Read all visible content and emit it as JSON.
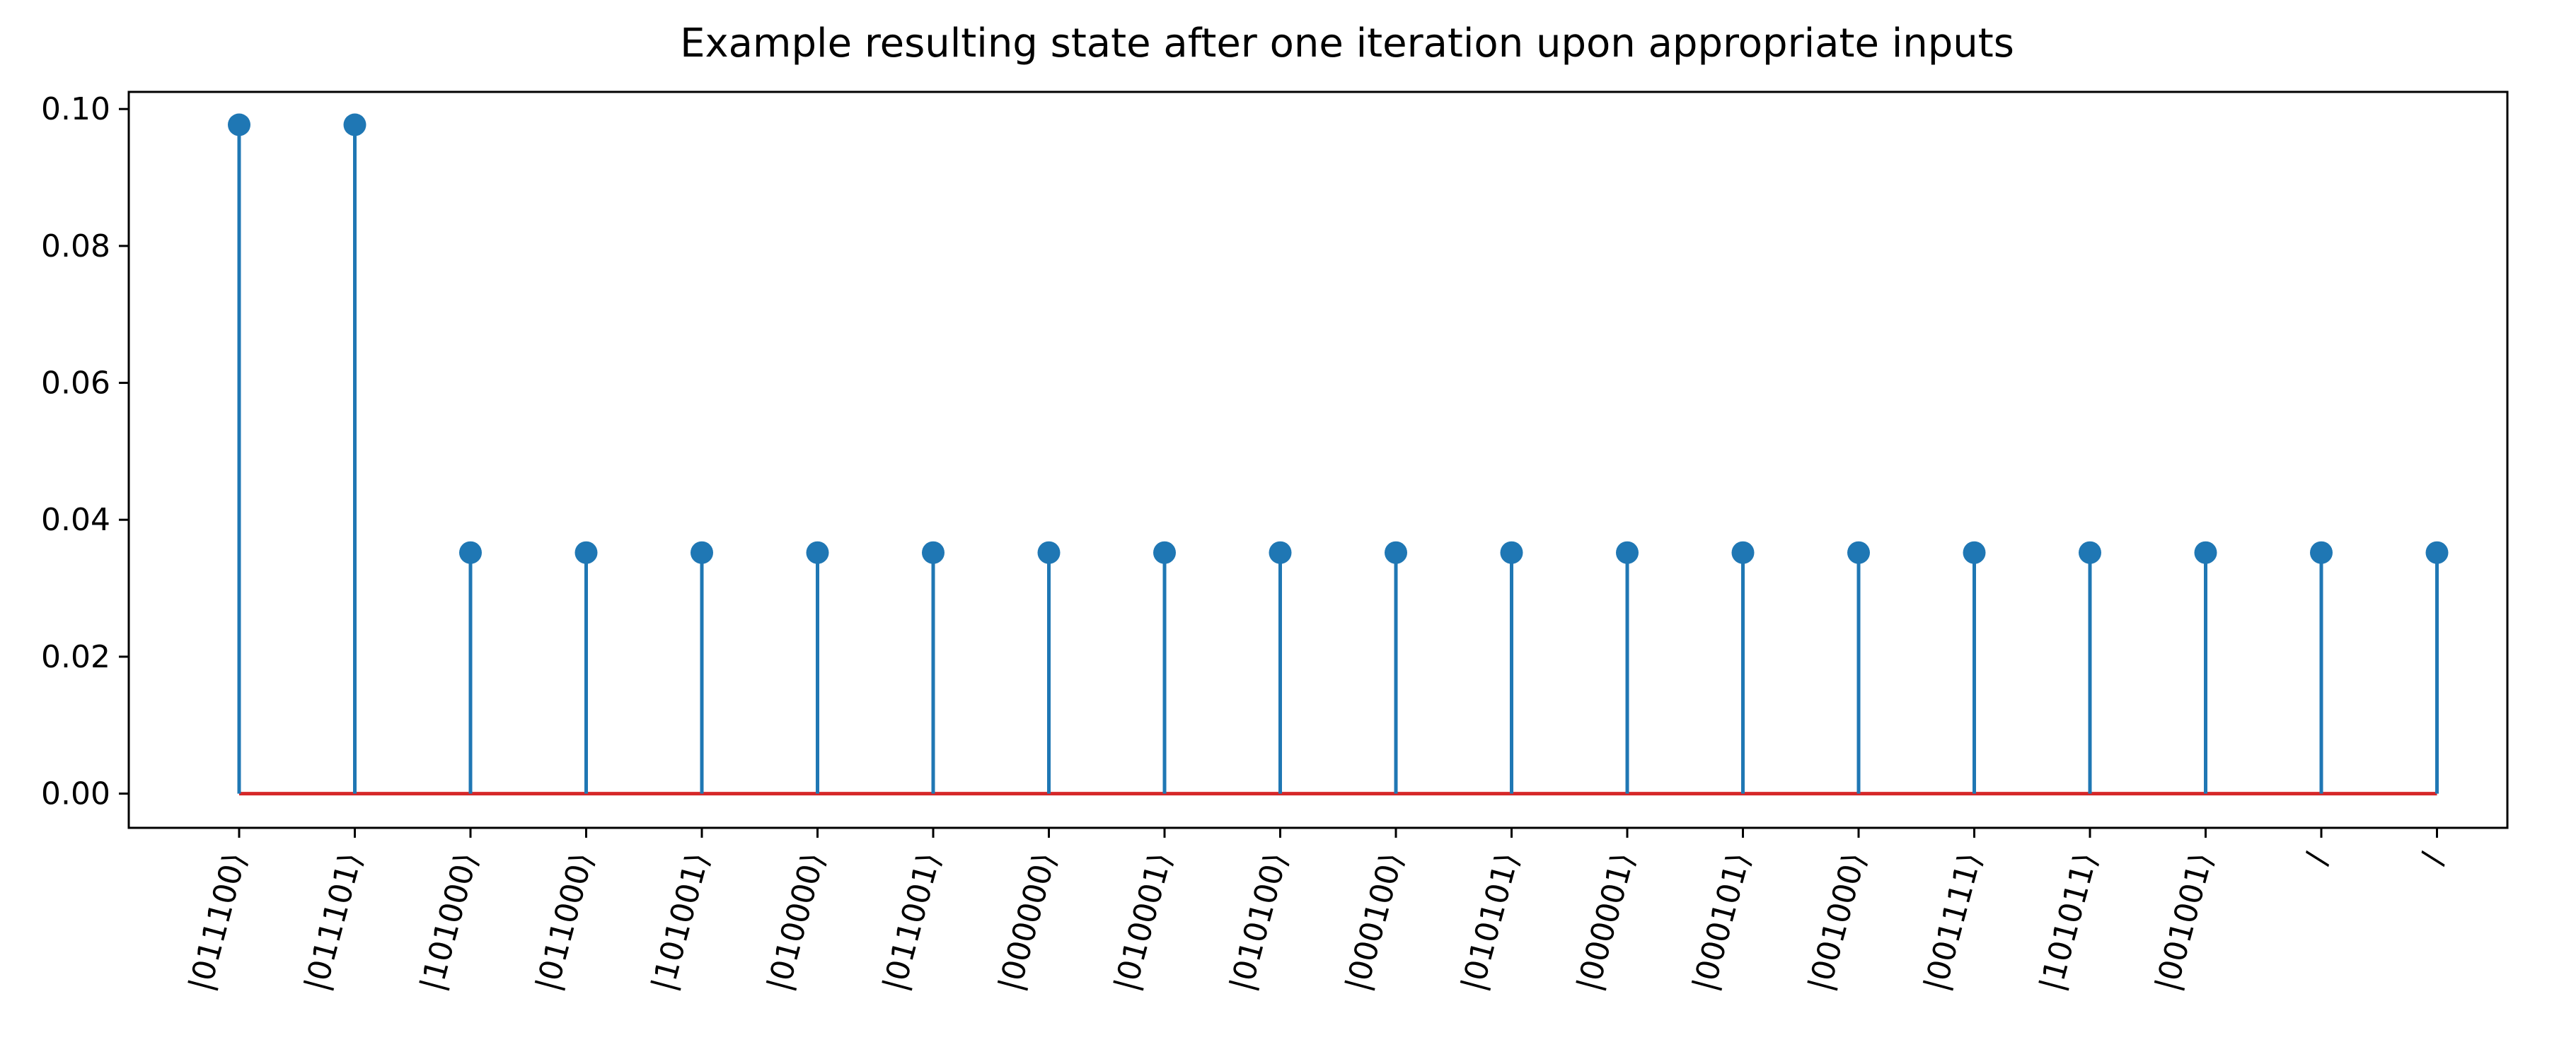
{
  "chart_data": {
    "type": "stem",
    "title": "Example resulting state after one iteration upon appropriate inputs",
    "xlabel": "",
    "ylabel": "",
    "ylim": [
      -0.005,
      0.1025
    ],
    "yticks": [
      "0.00",
      "0.02",
      "0.04",
      "0.06",
      "0.08",
      "0.10"
    ],
    "categories": [
      "|011100⟩",
      "|011101⟩",
      "|101000⟩",
      "|011000⟩",
      "|101001⟩",
      "|010000⟩",
      "|011001⟩",
      "|000000⟩",
      "|010001⟩",
      "|010100⟩",
      "|000100⟩",
      "|010101⟩",
      "|000001⟩",
      "|000101⟩",
      "|001000⟩",
      "|001111⟩",
      "|101011⟩",
      "|001001⟩",
      "/",
      "/"
    ],
    "values": [
      0.0977,
      0.0977,
      0.0352,
      0.0352,
      0.0352,
      0.0352,
      0.0352,
      0.0352,
      0.0352,
      0.0352,
      0.0352,
      0.0352,
      0.0352,
      0.0352,
      0.0352,
      0.0352,
      0.0352,
      0.0352,
      0.0352,
      0.0352
    ],
    "grid": false,
    "colors": {
      "stem": "#1f77b4",
      "baseline": "#d62728",
      "axis": "#000000"
    }
  }
}
